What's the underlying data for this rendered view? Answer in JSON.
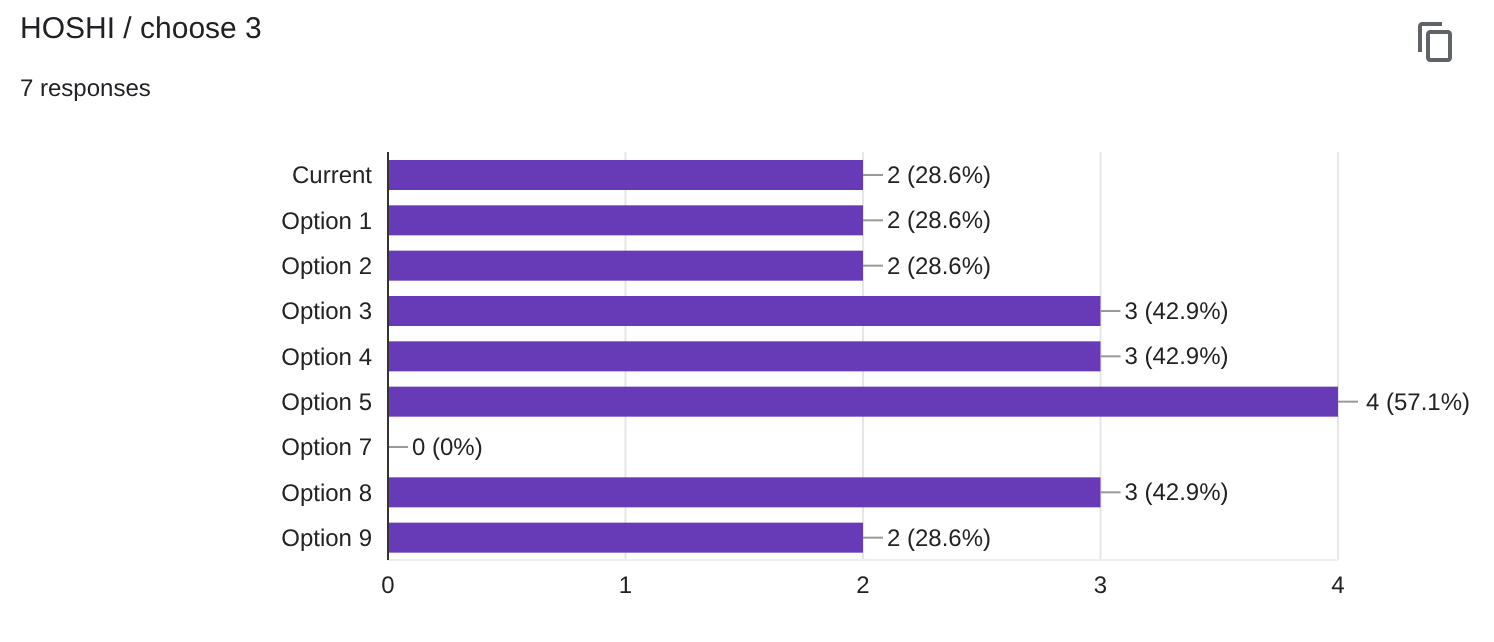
{
  "chart_data": {
    "type": "bar",
    "orientation": "horizontal",
    "title": "HOSHI / choose 3",
    "subtitle": "7 responses",
    "categories": [
      "Current",
      "Option 1",
      "Option 2",
      "Option 3",
      "Option 4",
      "Option 5",
      "Option 7",
      "Option 8",
      "Option 9"
    ],
    "values": [
      2,
      2,
      2,
      3,
      3,
      4,
      0,
      3,
      2
    ],
    "value_labels": [
      "2 (28.6%)",
      "2 (28.6%)",
      "2 (28.6%)",
      "3 (42.9%)",
      "3 (42.9%)",
      "4 (57.1%)",
      "0 (0%)",
      "3 (42.9%)",
      "2 (28.6%)"
    ],
    "color": "#673ab7",
    "xlim": [
      0,
      4
    ],
    "xticks": [
      0,
      1,
      2,
      3,
      4
    ],
    "grid": "x"
  }
}
